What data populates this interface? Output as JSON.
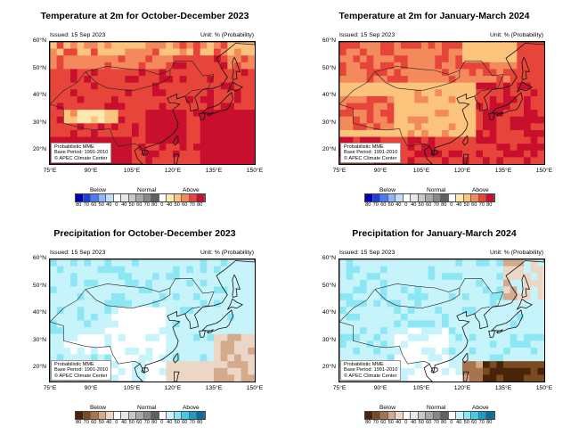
{
  "panels": [
    {
      "title": "Temperature at 2m for October-December 2023",
      "issued": "Issued: 15 Sep 2023",
      "unit": "Unit: % (Probability)",
      "info": [
        "Probabilistic MME",
        "Base Period: 1991-2010",
        "© APEC Climate Center"
      ],
      "scheme": "temp",
      "variant": 0
    },
    {
      "title": "Temperature at 2m for January-March 2024",
      "issued": "Issued: 15 Sep 2023",
      "unit": "Unit: % (Probability)",
      "info": [
        "Probabilistic MME",
        "Base Period: 1991-2010",
        "© APEC Climate Center"
      ],
      "scheme": "temp",
      "variant": 1
    },
    {
      "title": "Precipitation for October-December 2023",
      "issued": "Issued: 15 Sep 2023",
      "unit": "Unit: % (Probability)",
      "info": [
        "Probabilistic MME",
        "Base Period: 1991-2010",
        "© APEC Climate Center"
      ],
      "scheme": "prec",
      "variant": 0
    },
    {
      "title": "Precipitation for January-March 2024",
      "issued": "Issued: 15 Sep 2023",
      "unit": "Unit: % (Probability)",
      "info": [
        "Probabilistic MME",
        "Base Period: 1991-2010",
        "© APEC Climate Center"
      ],
      "scheme": "prec",
      "variant": 1
    }
  ],
  "lat_labels": [
    "60°N",
    "50°N",
    "40°N",
    "30°N",
    "20°N"
  ],
  "lon_labels": [
    "75°E",
    "90°E",
    "105°E",
    "120°E",
    "135°E",
    "150°E"
  ],
  "legend": {
    "category_labels": [
      "Below",
      "Normal",
      "Above"
    ],
    "tick_labels": [
      "80",
      "70",
      "60",
      "50",
      "40",
      "0",
      "40",
      "50",
      "60",
      "70",
      "80",
      "0",
      "40",
      "50",
      "60",
      "70",
      "80"
    ],
    "temp_colors": [
      "#0000b4",
      "#1a3fe0",
      "#4a7df0",
      "#8ab8f8",
      "#c4dcfc",
      "#ffffff",
      "#e8e8e8",
      "#c8c8c8",
      "#a8a8a8",
      "#888888",
      "#606060",
      "#ffffff",
      "#fde9b0",
      "#fbc37c",
      "#f48a5c",
      "#e8453a",
      "#c8102e"
    ],
    "prec_colors": [
      "#4a2408",
      "#7a4a20",
      "#a87450",
      "#d4aa8c",
      "#ecd7c6",
      "#ffffff",
      "#e8e8e8",
      "#c8c8c8",
      "#a8a8a8",
      "#888888",
      "#606060",
      "#ffffff",
      "#c6f4fa",
      "#8ce6f4",
      "#46c8e6",
      "#1e9cc8",
      "#0a6e9e"
    ]
  }
}
